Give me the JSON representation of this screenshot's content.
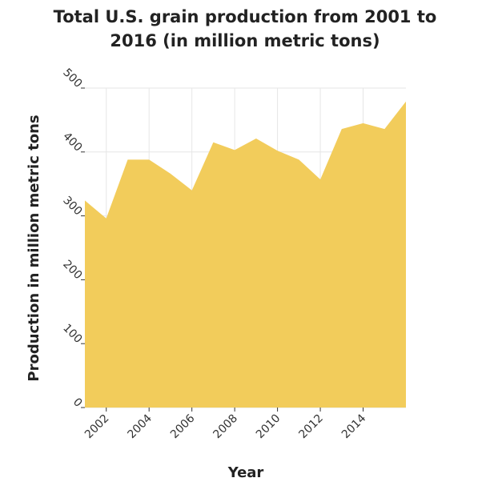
{
  "chart_data": {
    "type": "area",
    "title_lines": [
      "Total U.S. grain production from 2001 to",
      "2016 (in million metric tons)"
    ],
    "xlabel": "Year",
    "ylabel": "Production in million metric tons",
    "x": [
      2001,
      2002,
      2003,
      2004,
      2005,
      2006,
      2007,
      2008,
      2009,
      2010,
      2011,
      2012,
      2013,
      2014,
      2015,
      2016
    ],
    "values": [
      324,
      296,
      388,
      388,
      366,
      340,
      415,
      403,
      421,
      402,
      388,
      357,
      436,
      445,
      436,
      479
    ],
    "xlim": [
      2001,
      2016
    ],
    "ylim": [
      0,
      500
    ],
    "xticks": [
      "2002",
      "2004",
      "2006",
      "2008",
      "2010",
      "2012",
      "2014"
    ],
    "yticks": [
      "0",
      "100",
      "200",
      "300",
      "400",
      "500"
    ],
    "grid": true,
    "fill_color": "#f2cc5b",
    "grid_color": "#e6e6e6"
  }
}
